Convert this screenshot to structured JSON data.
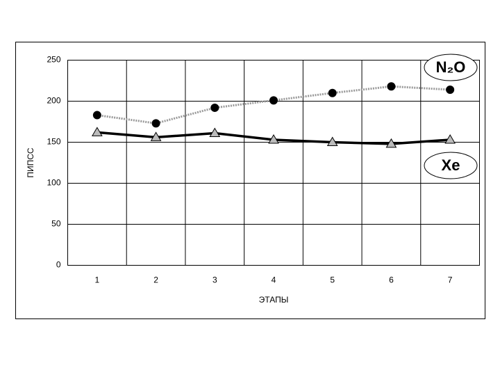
{
  "chart_data": {
    "type": "line",
    "x_label": "ЭТАПЫ",
    "y_label": "ПИПСС",
    "categories": [
      "1",
      "2",
      "3",
      "4",
      "5",
      "6",
      "7"
    ],
    "series": [
      {
        "name": "N₂O",
        "color": "#999999",
        "marker": "circle",
        "marker_color": "#000000",
        "values": [
          183,
          173,
          192,
          201,
          210,
          218,
          214
        ]
      },
      {
        "name": "Xe",
        "color": "#000000",
        "marker": "triangle",
        "marker_color": "#bbbbbb",
        "values": [
          162,
          156,
          161,
          153,
          150,
          148,
          153
        ]
      }
    ],
    "ylim": [
      0,
      250
    ],
    "yticks": [
      0,
      50,
      100,
      150,
      200,
      250
    ],
    "grid": true
  }
}
